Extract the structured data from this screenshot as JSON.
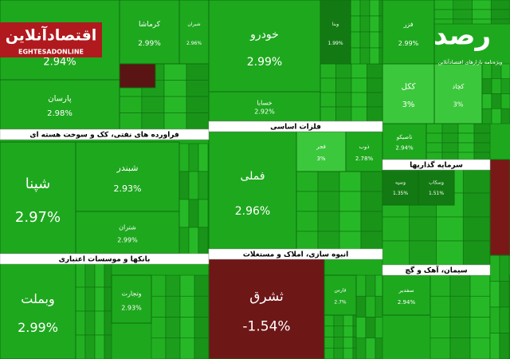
{
  "logo": {
    "name": "اقتصادآنلاین",
    "url": "EGHTESADONLINE"
  },
  "brand": {
    "name": "رصد",
    "tagline": "ویژه‌نامه بازارهای اقتصادآنلاین"
  },
  "sectors": [
    {
      "title": "فراورده های نفتی، کک و سوخت هسته ای"
    },
    {
      "title": "فلزات اساسی"
    },
    {
      "title": "سرمایه گذاریها"
    },
    {
      "title": "بانکها و موسسات اعتباری"
    },
    {
      "title": "انبوه سازی، املاک و مستغلات"
    },
    {
      "title": "سیمان، آهک و گچ"
    }
  ],
  "tiles": [
    {
      "change": "2.94%"
    },
    {
      "label": "پارسان",
      "change": "2.98%"
    },
    {
      "label": "کرماشا",
      "change": "2.99%"
    },
    {
      "label": "شیران",
      "change": "2.96%"
    },
    {
      "label": "خودرو",
      "change": "2.99%"
    },
    {
      "label": "خسابا",
      "change": "2.92%"
    },
    {
      "label": "وبنا",
      "change": "1.99%"
    },
    {
      "label": "فزر",
      "change": "2.99%"
    },
    {
      "label": "ککل",
      "change": "3%"
    },
    {
      "label": "کچاد",
      "change": "3%"
    },
    {
      "label": "شپنا",
      "change": "2.97%"
    },
    {
      "label": "شبندر",
      "change": "2.93%"
    },
    {
      "label": "شتران",
      "change": "2.99%"
    },
    {
      "label": "فملی",
      "change": "2.96%"
    },
    {
      "label": "فجر",
      "change": "3%"
    },
    {
      "label": "ذوب",
      "change": "2.78%"
    },
    {
      "label": "تاصیکو",
      "change": "2.94%"
    },
    {
      "label": "وبملت",
      "change": "2.99%"
    },
    {
      "label": "وتجارت",
      "change": "2.93%"
    },
    {
      "label": "ثشرق",
      "change": "-1.54%"
    },
    {
      "label": "فارس",
      "change": "2.7%"
    },
    {
      "label": "سفدیر",
      "change": "2.94%"
    },
    {
      "label": "وسپه",
      "change": "1.35%"
    },
    {
      "label": "وسکاب",
      "change": "1.51%"
    }
  ]
}
